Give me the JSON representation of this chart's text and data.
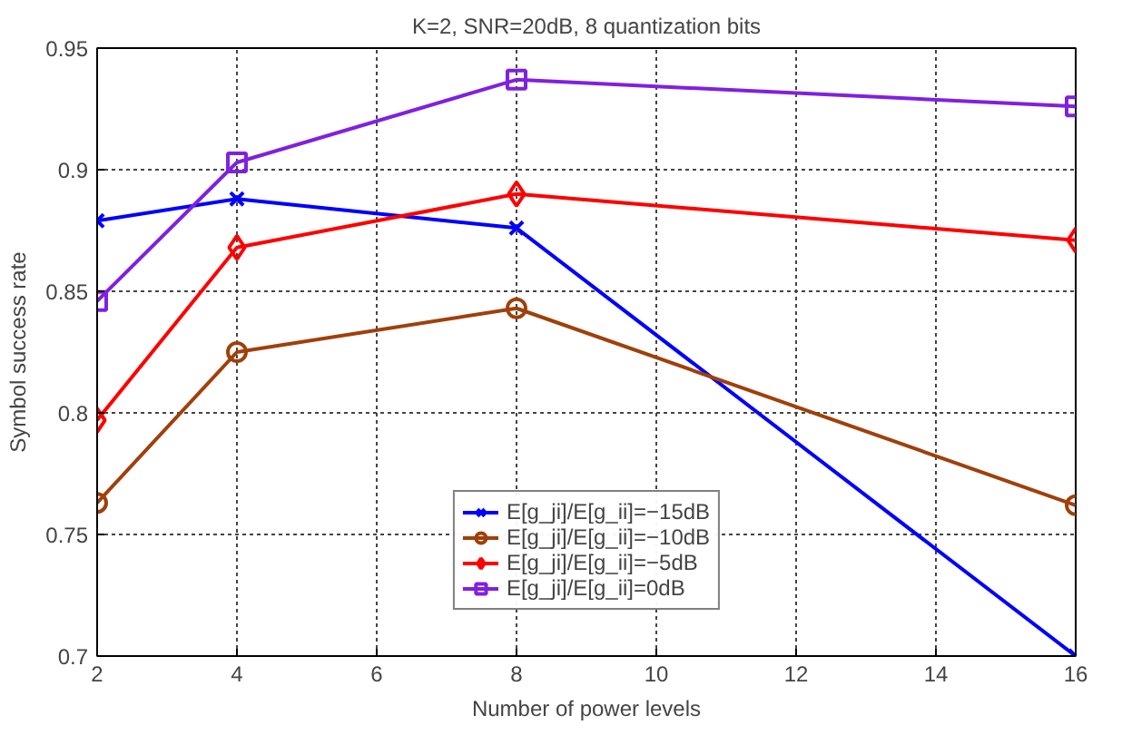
{
  "chart_data": {
    "type": "line",
    "title": "K=2, SNR=20dB, 8 quantization bits",
    "xlabel": "Number of power levels",
    "ylabel": "Symbol success rate",
    "x": [
      2,
      4,
      8,
      16
    ],
    "series": [
      {
        "name": "E[g_ji]/E[g_ii]=−15dB",
        "color": "#0000ff",
        "marker": "cross",
        "values": [
          0.879,
          0.888,
          0.876,
          0.7
        ]
      },
      {
        "name": "E[g_ji]/E[g_ii]=−10dB",
        "color": "#a0400a",
        "marker": "circle",
        "values": [
          0.763,
          0.825,
          0.843,
          0.762
        ]
      },
      {
        "name": "E[g_ji]/E[g_ii]=−5dB",
        "color": "#ff0000",
        "marker": "diamond",
        "values": [
          0.797,
          0.868,
          0.89,
          0.871
        ]
      },
      {
        "name": "E[g_ji]/E[g_ii]=0dB",
        "color": "#8020e0",
        "marker": "square",
        "values": [
          0.846,
          0.903,
          0.937,
          0.926
        ]
      }
    ],
    "xlim": [
      2,
      16
    ],
    "xticks": [
      2,
      4,
      6,
      8,
      10,
      12,
      14,
      16
    ],
    "ylim": [
      0.7,
      0.95
    ],
    "yticks": [
      0.7,
      0.75,
      0.8,
      0.85,
      0.9,
      0.95
    ],
    "grid": true,
    "legend": "bottom",
    "line_style": "solid"
  }
}
